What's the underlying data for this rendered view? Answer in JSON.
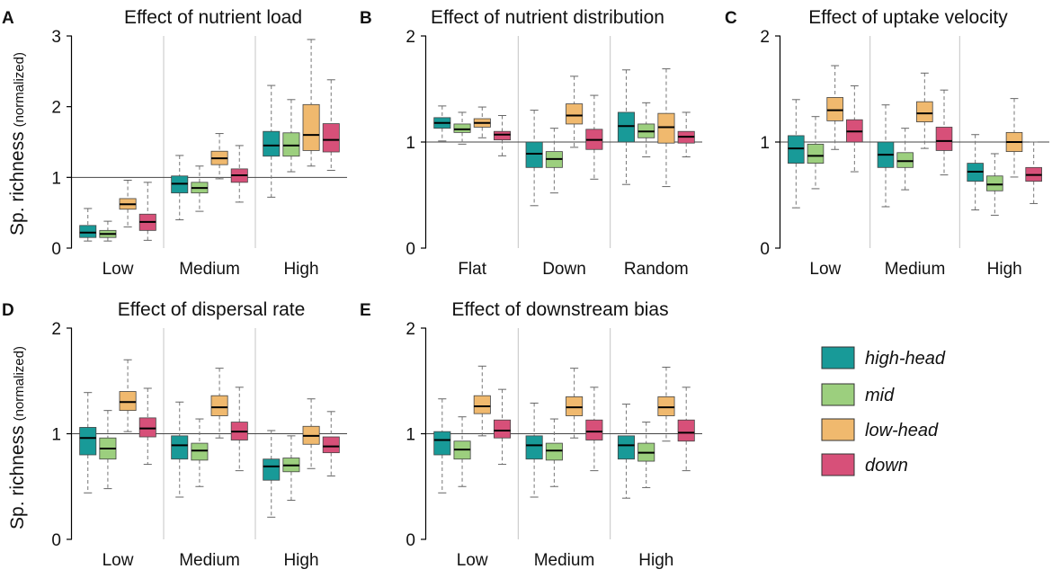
{
  "ylabel": {
    "main": "Sp. richness",
    "sub": "(normalized)"
  },
  "legend": [
    {
      "label": "high-head",
      "color": "#189a98"
    },
    {
      "label": "mid",
      "color": "#9ccf7e"
    },
    {
      "label": "low-head",
      "color": "#f0b96e"
    },
    {
      "label": "down",
      "color": "#d75079"
    }
  ],
  "chart_data": [
    {
      "type": "box",
      "letter": "A",
      "title": "Effect of nutrient load",
      "categories": [
        "Low",
        "Medium",
        "High"
      ],
      "ylim": [
        0,
        3
      ],
      "yticks": [
        0,
        1,
        2,
        3
      ],
      "ytick_labels": [
        "0",
        "1",
        "2",
        "3"
      ],
      "refline": 1,
      "series": [
        {
          "name": "high-head",
          "values": [
            {
              "min": 0.1,
              "q1": 0.15,
              "median": 0.22,
              "q3": 0.32,
              "max": 0.56
            },
            {
              "min": 0.4,
              "q1": 0.78,
              "median": 0.91,
              "q3": 1.02,
              "max": 1.31
            },
            {
              "min": 0.72,
              "q1": 1.3,
              "median": 1.45,
              "q3": 1.65,
              "max": 2.3
            }
          ]
        },
        {
          "name": "mid",
          "values": [
            {
              "min": 0.1,
              "q1": 0.15,
              "median": 0.2,
              "q3": 0.25,
              "max": 0.38
            },
            {
              "min": 0.52,
              "q1": 0.78,
              "median": 0.85,
              "q3": 0.93,
              "max": 1.16
            },
            {
              "min": 1.08,
              "q1": 1.3,
              "median": 1.45,
              "q3": 1.63,
              "max": 2.1
            }
          ]
        },
        {
          "name": "low-head",
          "values": [
            {
              "min": 0.3,
              "q1": 0.55,
              "median": 0.62,
              "q3": 0.7,
              "max": 0.96
            },
            {
              "min": 0.98,
              "q1": 1.18,
              "median": 1.27,
              "q3": 1.37,
              "max": 1.62
            },
            {
              "min": 1.16,
              "q1": 1.38,
              "median": 1.6,
              "q3": 2.03,
              "max": 2.95
            }
          ]
        },
        {
          "name": "down",
          "values": [
            {
              "min": 0.11,
              "q1": 0.25,
              "median": 0.37,
              "q3": 0.48,
              "max": 0.93
            },
            {
              "min": 0.65,
              "q1": 0.93,
              "median": 1.03,
              "q3": 1.12,
              "max": 1.45
            },
            {
              "min": 1.1,
              "q1": 1.36,
              "median": 1.53,
              "q3": 1.76,
              "max": 2.38
            }
          ]
        }
      ]
    },
    {
      "type": "box",
      "letter": "B",
      "title": "Effect of nutrient distribution",
      "categories": [
        "Flat",
        "Down",
        "Random"
      ],
      "ylim": [
        0,
        2
      ],
      "yticks": [
        0,
        1,
        2
      ],
      "ytick_labels": [
        "0",
        "1",
        "2"
      ],
      "refline": 1,
      "series": [
        {
          "name": "high-head",
          "values": [
            {
              "min": 1.01,
              "q1": 1.13,
              "median": 1.18,
              "q3": 1.23,
              "max": 1.34
            },
            {
              "min": 0.4,
              "q1": 0.76,
              "median": 0.89,
              "q3": 1.0,
              "max": 1.3
            },
            {
              "min": 0.6,
              "q1": 1.0,
              "median": 1.15,
              "q3": 1.28,
              "max": 1.68
            }
          ]
        },
        {
          "name": "mid",
          "values": [
            {
              "min": 0.98,
              "q1": 1.09,
              "median": 1.12,
              "q3": 1.17,
              "max": 1.28
            },
            {
              "min": 0.52,
              "q1": 0.76,
              "median": 0.84,
              "q3": 0.91,
              "max": 1.13
            },
            {
              "min": 0.86,
              "q1": 1.04,
              "median": 1.1,
              "q3": 1.17,
              "max": 1.37
            }
          ]
        },
        {
          "name": "low-head",
          "values": [
            {
              "min": 1.04,
              "q1": 1.14,
              "median": 1.18,
              "q3": 1.22,
              "max": 1.33
            },
            {
              "min": 0.95,
              "q1": 1.17,
              "median": 1.25,
              "q3": 1.36,
              "max": 1.62
            },
            {
              "min": 0.58,
              "q1": 0.99,
              "median": 1.14,
              "q3": 1.27,
              "max": 1.69
            }
          ]
        },
        {
          "name": "down",
          "values": [
            {
              "min": 0.87,
              "q1": 1.02,
              "median": 1.07,
              "q3": 1.1,
              "max": 1.25
            },
            {
              "min": 0.65,
              "q1": 0.93,
              "median": 1.02,
              "q3": 1.12,
              "max": 1.44
            },
            {
              "min": 0.86,
              "q1": 0.99,
              "median": 1.05,
              "q3": 1.1,
              "max": 1.28
            }
          ]
        }
      ]
    },
    {
      "type": "box",
      "letter": "C",
      "title": "Effect of uptake velocity",
      "categories": [
        "Low",
        "Medium",
        "High"
      ],
      "ylim": [
        0,
        2
      ],
      "yticks": [
        0,
        1,
        2
      ],
      "ytick_labels": [
        "0",
        "1",
        "2"
      ],
      "refline": 1,
      "series": [
        {
          "name": "high-head",
          "values": [
            {
              "min": 0.38,
              "q1": 0.8,
              "median": 0.94,
              "q3": 1.06,
              "max": 1.4
            },
            {
              "min": 0.39,
              "q1": 0.76,
              "median": 0.88,
              "q3": 1.0,
              "max": 1.35
            },
            {
              "min": 0.36,
              "q1": 0.63,
              "median": 0.72,
              "q3": 0.8,
              "max": 1.07
            }
          ]
        },
        {
          "name": "mid",
          "values": [
            {
              "min": 0.56,
              "q1": 0.8,
              "median": 0.87,
              "q3": 0.98,
              "max": 1.24
            },
            {
              "min": 0.55,
              "q1": 0.76,
              "median": 0.82,
              "q3": 0.9,
              "max": 1.13
            },
            {
              "min": 0.31,
              "q1": 0.54,
              "median": 0.6,
              "q3": 0.68,
              "max": 0.89
            }
          ]
        },
        {
          "name": "low-head",
          "values": [
            {
              "min": 0.93,
              "q1": 1.2,
              "median": 1.3,
              "q3": 1.42,
              "max": 1.72
            },
            {
              "min": 0.94,
              "q1": 1.19,
              "median": 1.27,
              "q3": 1.38,
              "max": 1.65
            },
            {
              "min": 0.67,
              "q1": 0.91,
              "median": 1.0,
              "q3": 1.09,
              "max": 1.41
            }
          ]
        },
        {
          "name": "down",
          "values": [
            {
              "min": 0.72,
              "q1": 1.0,
              "median": 1.1,
              "q3": 1.21,
              "max": 1.53
            },
            {
              "min": 0.69,
              "q1": 0.92,
              "median": 1.01,
              "q3": 1.14,
              "max": 1.49
            },
            {
              "min": 0.42,
              "q1": 0.63,
              "median": 0.69,
              "q3": 0.76,
              "max": 1.0
            }
          ]
        }
      ]
    },
    {
      "type": "box",
      "letter": "D",
      "title": "Effect of dispersal rate",
      "categories": [
        "Low",
        "Medium",
        "High"
      ],
      "ylim": [
        0,
        2
      ],
      "yticks": [
        0,
        1,
        2
      ],
      "ytick_labels": [
        "0",
        "1",
        "2"
      ],
      "refline": 1,
      "series": [
        {
          "name": "high-head",
          "values": [
            {
              "min": 0.44,
              "q1": 0.8,
              "median": 0.96,
              "q3": 1.06,
              "max": 1.39
            },
            {
              "min": 0.4,
              "q1": 0.76,
              "median": 0.89,
              "q3": 0.98,
              "max": 1.3
            },
            {
              "min": 0.21,
              "q1": 0.56,
              "median": 0.69,
              "q3": 0.76,
              "max": 1.03
            }
          ]
        },
        {
          "name": "mid",
          "values": [
            {
              "min": 0.48,
              "q1": 0.76,
              "median": 0.86,
              "q3": 0.96,
              "max": 1.22
            },
            {
              "min": 0.5,
              "q1": 0.75,
              "median": 0.84,
              "q3": 0.91,
              "max": 1.14
            },
            {
              "min": 0.37,
              "q1": 0.64,
              "median": 0.7,
              "q3": 0.77,
              "max": 0.98
            }
          ]
        },
        {
          "name": "low-head",
          "values": [
            {
              "min": 1.02,
              "q1": 1.22,
              "median": 1.3,
              "q3": 1.4,
              "max": 1.7
            },
            {
              "min": 0.96,
              "q1": 1.17,
              "median": 1.25,
              "q3": 1.36,
              "max": 1.62
            },
            {
              "min": 0.67,
              "q1": 0.9,
              "median": 0.98,
              "q3": 1.07,
              "max": 1.33
            }
          ]
        },
        {
          "name": "down",
          "values": [
            {
              "min": 0.71,
              "q1": 0.97,
              "median": 1.05,
              "q3": 1.15,
              "max": 1.43
            },
            {
              "min": 0.65,
              "q1": 0.94,
              "median": 1.02,
              "q3": 1.11,
              "max": 1.44
            },
            {
              "min": 0.6,
              "q1": 0.82,
              "median": 0.88,
              "q3": 0.97,
              "max": 1.21
            }
          ]
        }
      ]
    },
    {
      "type": "box",
      "letter": "E",
      "title": "Effect of downstream bias",
      "categories": [
        "Low",
        "Medium",
        "High"
      ],
      "ylim": [
        0,
        2
      ],
      "yticks": [
        0,
        1,
        2
      ],
      "ytick_labels": [
        "0",
        "1",
        "2"
      ],
      "refline": 1,
      "series": [
        {
          "name": "high-head",
          "values": [
            {
              "min": 0.44,
              "q1": 0.8,
              "median": 0.94,
              "q3": 1.02,
              "max": 1.33
            },
            {
              "min": 0.4,
              "q1": 0.76,
              "median": 0.89,
              "q3": 0.98,
              "max": 1.29
            },
            {
              "min": 0.39,
              "q1": 0.76,
              "median": 0.89,
              "q3": 0.98,
              "max": 1.28
            }
          ]
        },
        {
          "name": "mid",
          "values": [
            {
              "min": 0.5,
              "q1": 0.76,
              "median": 0.85,
              "q3": 0.93,
              "max": 1.16
            },
            {
              "min": 0.5,
              "q1": 0.75,
              "median": 0.84,
              "q3": 0.91,
              "max": 1.14
            },
            {
              "min": 0.49,
              "q1": 0.74,
              "median": 0.82,
              "q3": 0.91,
              "max": 1.11
            }
          ]
        },
        {
          "name": "low-head",
          "values": [
            {
              "min": 0.98,
              "q1": 1.19,
              "median": 1.26,
              "q3": 1.36,
              "max": 1.64
            },
            {
              "min": 0.96,
              "q1": 1.17,
              "median": 1.25,
              "q3": 1.35,
              "max": 1.62
            },
            {
              "min": 0.93,
              "q1": 1.17,
              "median": 1.25,
              "q3": 1.35,
              "max": 1.63
            }
          ]
        },
        {
          "name": "down",
          "values": [
            {
              "min": 0.71,
              "q1": 0.96,
              "median": 1.03,
              "q3": 1.13,
              "max": 1.42
            },
            {
              "min": 0.65,
              "q1": 0.94,
              "median": 1.02,
              "q3": 1.13,
              "max": 1.44
            },
            {
              "min": 0.65,
              "q1": 0.93,
              "median": 1.01,
              "q3": 1.13,
              "max": 1.44
            }
          ]
        }
      ]
    }
  ]
}
